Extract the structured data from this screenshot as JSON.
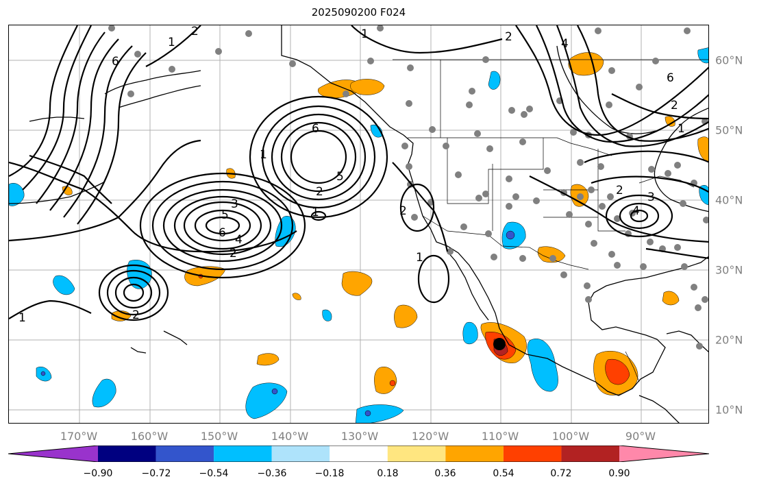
{
  "title": "2025090200 F024",
  "lon_labels": [
    "170°W",
    "160°W",
    "150°W",
    "140°W",
    "130°W",
    "120°W",
    "110°W",
    "100°W",
    "90°W"
  ],
  "lat_labels": [
    "60°N",
    "50°N",
    "40°N",
    "30°N",
    "20°N",
    "10°N"
  ],
  "colorbar": {
    "ticks": [
      "−0.90",
      "−0.72",
      "−0.54",
      "−0.36",
      "−0.18",
      "0.18",
      "0.36",
      "0.54",
      "0.72",
      "0.90"
    ],
    "colors": [
      "#9933cc",
      "#000080",
      "#3355cc",
      "#00bfff",
      "#aee3fb",
      "#ffffff",
      "#ffe680",
      "#ffa500",
      "#ff4000",
      "#b22222",
      "#ff88aa"
    ]
  },
  "contour_labels": [
    "6",
    "5",
    "4",
    "3",
    "2",
    "1"
  ],
  "colors": {
    "gridline": "#b0b0b0",
    "coast": "#000000",
    "station": "#808080",
    "negative_fill": "#00bfff",
    "positive_fill": "#ffa500"
  }
}
